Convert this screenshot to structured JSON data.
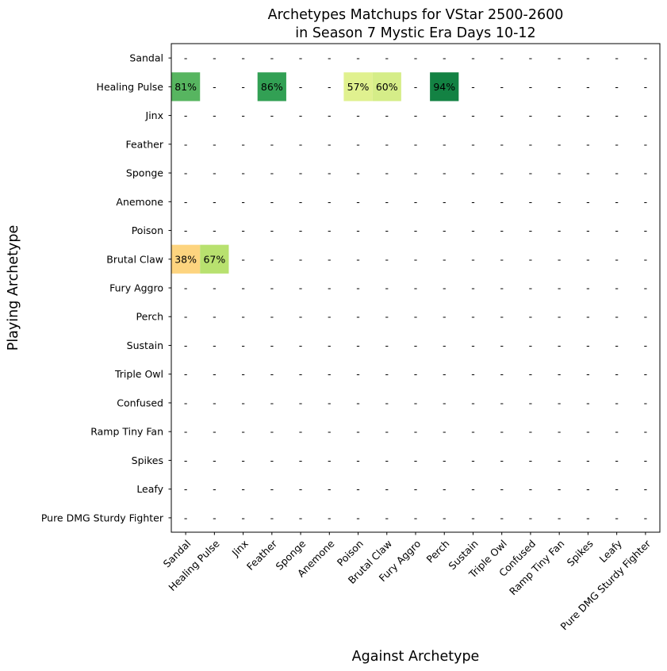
{
  "chart_data": {
    "type": "heatmap",
    "title": [
      "Archetypes Matchups for VStar 2500-2600",
      "in Season 7 Mystic Era Days 10-12"
    ],
    "xlabel": "Against Archetype",
    "ylabel": "Playing Archetype",
    "rows": [
      "Sandal",
      "Healing Pulse",
      "Jinx",
      "Feather",
      "Sponge",
      "Anemone",
      "Poison",
      "Brutal Claw",
      "Fury Aggro",
      "Perch",
      "Sustain",
      "Triple Owl",
      "Confused",
      "Ramp Tiny Fan",
      "Spikes",
      "Leafy",
      "Pure DMG Sturdy Fighter"
    ],
    "columns": [
      "Sandal",
      "Healing Pulse",
      "Jinx",
      "Feather",
      "Sponge",
      "Anemone",
      "Poison",
      "Brutal Claw",
      "Fury Aggro",
      "Perch",
      "Sustain",
      "Triple Owl",
      "Confused",
      "Ramp Tiny Fan",
      "Spikes",
      "Leafy",
      "Pure DMG Sturdy Fighter"
    ],
    "empty_label": "-",
    "cells": [
      {
        "row": "Healing Pulse",
        "col": "Sandal",
        "value": 81,
        "label": "81%",
        "color": "#57b560"
      },
      {
        "row": "Healing Pulse",
        "col": "Feather",
        "value": 86,
        "label": "86%",
        "color": "#32a054"
      },
      {
        "row": "Healing Pulse",
        "col": "Poison",
        "value": 57,
        "label": "57%",
        "color": "#e0f18f"
      },
      {
        "row": "Healing Pulse",
        "col": "Brutal Claw",
        "value": 60,
        "label": "60%",
        "color": "#d5ed88"
      },
      {
        "row": "Healing Pulse",
        "col": "Perch",
        "value": 94,
        "label": "94%",
        "color": "#138243"
      },
      {
        "row": "Brutal Claw",
        "col": "Sandal",
        "value": 38,
        "label": "38%",
        "color": "#fdd47f"
      },
      {
        "row": "Brutal Claw",
        "col": "Healing Pulse",
        "value": 67,
        "label": "67%",
        "color": "#b8e16f"
      }
    ]
  }
}
